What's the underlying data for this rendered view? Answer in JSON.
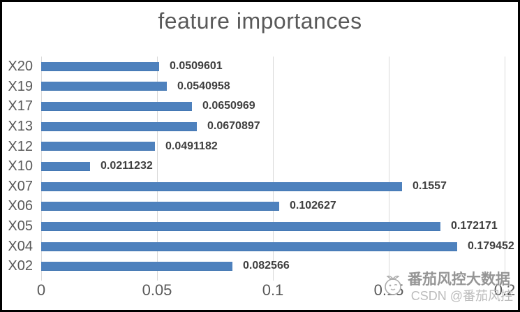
{
  "page": {
    "background": "#ffffff",
    "border_color": "#000000"
  },
  "chart_data": {
    "type": "bar",
    "orientation": "horizontal",
    "title": "feature importances",
    "categories": [
      "X20",
      "X19",
      "X17",
      "X13",
      "X12",
      "X10",
      "X07",
      "X06",
      "X05",
      "X04",
      "X02"
    ],
    "values": [
      0.0509601,
      0.0540958,
      0.0650969,
      0.0670897,
      0.0491182,
      0.0211232,
      0.1557,
      0.102627,
      0.172171,
      0.179452,
      0.082566
    ],
    "value_labels": [
      "0.0509601",
      "0.0540958",
      "0.0650969",
      "0.0670897",
      "0.0491182",
      "0.0211232",
      "0.1557",
      "0.102627",
      "0.172171",
      "0.179452",
      "0.082566"
    ],
    "xlim": [
      0,
      0.2
    ],
    "x_ticks": [
      0,
      0.05,
      0.1,
      0.15,
      0.2
    ],
    "x_tick_labels": [
      "0",
      "0.05",
      "0.1",
      "0.15",
      "0.2"
    ],
    "grid": true,
    "legend": "none",
    "xlabel": "",
    "ylabel": "",
    "bar_color": "#4e81bd",
    "gridline_color": "#d9d9d9",
    "title_color": "#595959",
    "axis_label_color": "#595959",
    "value_label_color": "#3f3f3f"
  },
  "watermark": {
    "line1": "番茄风控大数据",
    "line2": "CSDN @番茄风控",
    "icon": "tomato-icon"
  }
}
